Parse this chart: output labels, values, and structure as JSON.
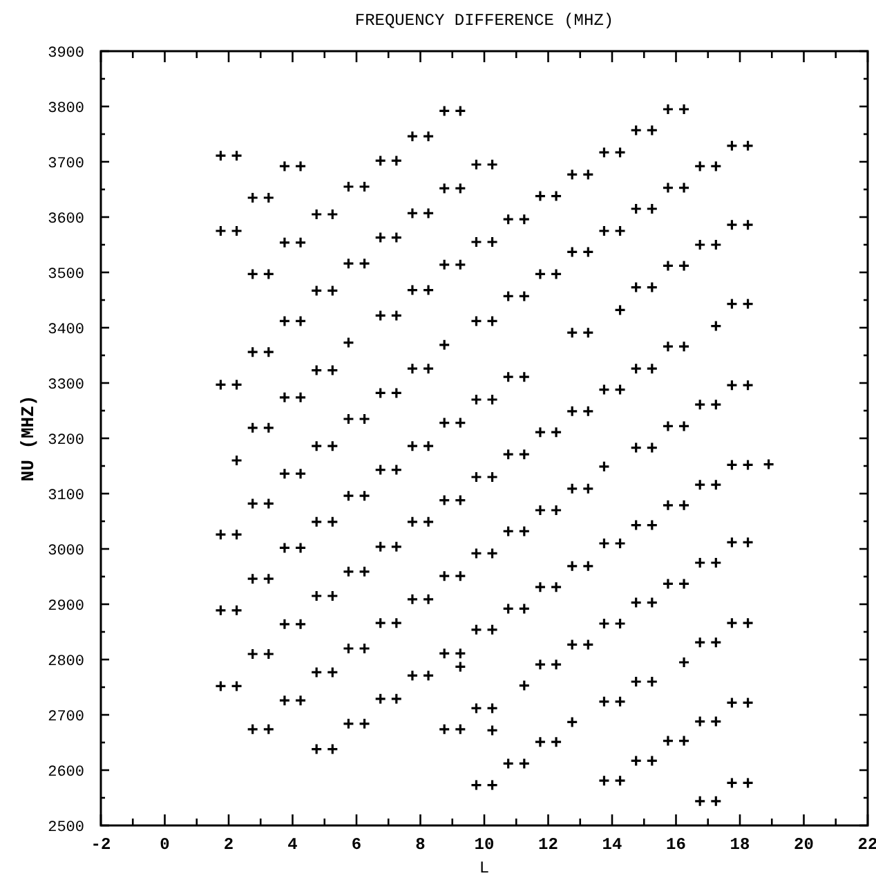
{
  "chart_data": {
    "type": "scatter",
    "title": "FREQUENCY DIFFERENCE (MHZ)",
    "xlabel": "L",
    "ylabel": "NU (MHZ)",
    "xlim": [
      -2,
      22
    ],
    "ylim": [
      2500,
      3900
    ],
    "xticks": [
      -2,
      {
        "value": -1,
        "label": null
      },
      0,
      {
        "value": 1,
        "label": null
      },
      2,
      {
        "value": 3,
        "label": null
      },
      4,
      {
        "value": 5,
        "label": null
      },
      6,
      {
        "value": 7,
        "label": null
      },
      8,
      {
        "value": 9,
        "label": null
      },
      10,
      {
        "value": 11,
        "label": null
      },
      12,
      {
        "value": 13,
        "label": null
      },
      14,
      {
        "value": 15,
        "label": null
      },
      16,
      {
        "value": 17,
        "label": null
      },
      18,
      {
        "value": 19,
        "label": null
      },
      20,
      {
        "value": 21,
        "label": null
      },
      22
    ],
    "yticks": [
      2500,
      {
        "value": 2550,
        "label": null
      },
      2600,
      {
        "value": 2650,
        "label": null
      },
      2700,
      {
        "value": 2750,
        "label": null
      },
      2800,
      {
        "value": 2850,
        "label": null
      },
      2900,
      {
        "value": 2950,
        "label": null
      },
      3000,
      {
        "value": 3050,
        "label": null
      },
      3100,
      {
        "value": 3150,
        "label": null
      },
      3200,
      {
        "value": 3250,
        "label": null
      },
      3300,
      {
        "value": 3350,
        "label": null
      },
      3400,
      {
        "value": 3450,
        "label": null
      },
      3500,
      {
        "value": 3550,
        "label": null
      },
      3600,
      {
        "value": 3650,
        "label": null
      },
      3700,
      {
        "value": 3750,
        "label": null
      },
      3800,
      {
        "value": 3850,
        "label": null
      },
      3900
    ],
    "grid": false,
    "marker": "cross",
    "series": [
      {
        "color": "#000000",
        "x": [
          1.75,
          2.25,
          1.75,
          2.25,
          1.75,
          2.25,
          1.75,
          2.25,
          1.75,
          2.25,
          1.75,
          2.25,
          2.25,
          2.75,
          3.25,
          2.75,
          3.25,
          2.75,
          3.25,
          2.75,
          3.25,
          2.75,
          3.25,
          2.75,
          3.25,
          2.75,
          3.25,
          2.75,
          3.25,
          3.75,
          4.25,
          3.75,
          4.25,
          3.75,
          4.25,
          3.75,
          4.25,
          3.75,
          4.25,
          3.75,
          4.25,
          3.75,
          4.25,
          3.75,
          4.25,
          4.75,
          5.25,
          4.75,
          5.25,
          4.75,
          5.25,
          4.75,
          5.25,
          4.75,
          5.25,
          4.75,
          5.25,
          4.75,
          5.25,
          4.75,
          5.25,
          5.75,
          6.25,
          5.75,
          6.25,
          5.75,
          6.25,
          5.75,
          6.25,
          5.75,
          6.25,
          5.75,
          6.25,
          5.75,
          6.25,
          5.75,
          6.75,
          7.25,
          6.75,
          7.25,
          6.75,
          7.25,
          6.75,
          7.25,
          6.75,
          7.25,
          6.75,
          7.25,
          6.75,
          7.25,
          6.75,
          7.25,
          7.75,
          8.25,
          7.75,
          8.25,
          7.75,
          8.25,
          7.75,
          8.25,
          7.75,
          8.25,
          7.75,
          8.25,
          7.75,
          8.25,
          7.75,
          8.25,
          8.75,
          9.25,
          8.75,
          9.25,
          8.75,
          9.25,
          8.75,
          9.25,
          8.75,
          9.25,
          8.75,
          9.25,
          8.75,
          9.25,
          8.75,
          9.25,
          8.75,
          9.25,
          9.75,
          10.25,
          9.75,
          10.25,
          9.75,
          10.25,
          9.75,
          10.25,
          9.75,
          10.25,
          9.75,
          10.25,
          9.75,
          10.25,
          9.75,
          10.25,
          9.75,
          10.25,
          10.25,
          10.75,
          11.25,
          10.75,
          11.25,
          10.75,
          11.25,
          10.75,
          11.25,
          10.75,
          11.25,
          10.75,
          11.25,
          10.75,
          11.25,
          11.25,
          11.75,
          12.25,
          11.75,
          12.25,
          11.75,
          12.25,
          11.75,
          12.25,
          11.75,
          12.25,
          11.75,
          12.25,
          11.75,
          12.25,
          12.75,
          13.25,
          12.75,
          13.25,
          12.75,
          13.25,
          12.75,
          13.25,
          12.75,
          13.25,
          12.75,
          13.25,
          12.75,
          13.25,
          12.75,
          13.75,
          14.25,
          13.75,
          14.25,
          13.75,
          14.25,
          13.75,
          14.25,
          13.75,
          14.25,
          13.75,
          14.25,
          13.75,
          14.25,
          14.25,
          13.75,
          14.75,
          15.25,
          14.75,
          15.25,
          14.75,
          15.25,
          14.75,
          15.25,
          14.75,
          15.25,
          14.75,
          15.25,
          14.75,
          15.25,
          14.75,
          15.25,
          14.75,
          15.25,
          15.75,
          16.25,
          15.75,
          16.25,
          15.75,
          16.25,
          15.75,
          16.25,
          15.75,
          16.25,
          15.75,
          16.25,
          15.75,
          16.25,
          15.75,
          16.25,
          16.25,
          16.75,
          17.25,
          16.75,
          17.25,
          16.75,
          17.25,
          16.75,
          17.25,
          16.75,
          17.25,
          16.75,
          17.25,
          16.75,
          17.25,
          16.75,
          17.25,
          17.25,
          17.75,
          18.25,
          17.75,
          18.25,
          17.75,
          18.25,
          17.75,
          18.25,
          17.75,
          18.25,
          17.75,
          18.25,
          17.75,
          18.25,
          17.75,
          18.25,
          17.75,
          18.25,
          18.9
        ],
        "values": [
          3711,
          3711,
          3575,
          3575,
          3297,
          3297,
          3026,
          3026,
          2889,
          2889,
          2752,
          2752,
          3160,
          3635,
          3635,
          3497,
          3497,
          3356,
          3356,
          3219,
          3219,
          3082,
          3082,
          2946,
          2946,
          2810,
          2810,
          2674,
          2674,
          3692,
          3692,
          3554,
          3554,
          3412,
          3412,
          3274,
          3274,
          3136,
          3136,
          3002,
          3002,
          2864,
          2864,
          2726,
          2726,
          3605,
          3605,
          3467,
          3467,
          3323,
          3323,
          3186,
          3186,
          3049,
          3049,
          2915,
          2915,
          2777,
          2777,
          2638,
          2638,
          3655,
          3655,
          3516,
          3516,
          3235,
          3235,
          3096,
          3096,
          2959,
          2959,
          2820,
          2820,
          2684,
          2684,
          3373,
          3702,
          3702,
          3563,
          3563,
          3422,
          3422,
          3282,
          3282,
          3143,
          3143,
          3004,
          3004,
          2866,
          2866,
          2729,
          2729,
          3746,
          3746,
          3607,
          3607,
          3468,
          3468,
          3326,
          3326,
          3186,
          3186,
          3049,
          3049,
          2909,
          2909,
          2771,
          2771,
          3792,
          3792,
          3652,
          3652,
          3514,
          3514,
          3228,
          3228,
          3088,
          3088,
          2951,
          2951,
          2811,
          2811,
          2674,
          2674,
          3369,
          2787,
          3695,
          3695,
          3555,
          3555,
          3412,
          3412,
          3270,
          3270,
          3130,
          3130,
          2992,
          2992,
          2854,
          2854,
          2712,
          2712,
          2573,
          2573,
          2672,
          3596,
          3596,
          3457,
          3457,
          3311,
          3311,
          3171,
          3171,
          3032,
          3032,
          2892,
          2892,
          2612,
          2612,
          2753,
          3638,
          3638,
          3497,
          3497,
          3211,
          3211,
          3070,
          3070,
          2931,
          2931,
          2791,
          2791,
          2651,
          2651,
          3677,
          3677,
          3537,
          3537,
          3391,
          3391,
          3249,
          3249,
          3109,
          3109,
          2969,
          2969,
          2827,
          2827,
          2687,
          3717,
          3717,
          3575,
          3575,
          3288,
          3288,
          3010,
          3010,
          2865,
          2865,
          2724,
          2724,
          2581,
          2581,
          3432,
          3149,
          3757,
          3757,
          3615,
          3615,
          3473,
          3473,
          3326,
          3326,
          3183,
          3183,
          3043,
          3043,
          2903,
          2903,
          2760,
          2760,
          2617,
          2617,
          3795,
          3795,
          3653,
          3653,
          3512,
          3512,
          3366,
          3366,
          3222,
          3222,
          3079,
          3079,
          2937,
          2937,
          2653,
          2653,
          2795,
          3692,
          3692,
          3550,
          3550,
          3261,
          3261,
          3116,
          3116,
          2975,
          2975,
          2831,
          2831,
          2688,
          2688,
          2544,
          2544,
          3403,
          3729,
          3729,
          3586,
          3586,
          3443,
          3443,
          3296,
          3296,
          3152,
          3152,
          3012,
          3012,
          2866,
          2866,
          2722,
          2722,
          2577,
          2577,
          3153
        ]
      }
    ]
  }
}
